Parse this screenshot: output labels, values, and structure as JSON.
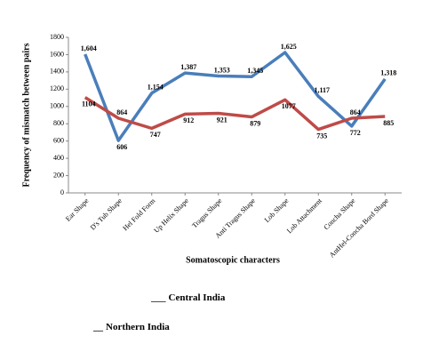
{
  "chart_data": {
    "type": "line",
    "x_label": "Somatoscopic characters",
    "y_label": "Frequency of mismatch between pairs",
    "categories": [
      "Ear Shape",
      "D's Tub Shape",
      "Hel Fold Form",
      "Up Helix Shape",
      "Tragus Shape",
      "Anti Tragus Shape",
      "Lob Shape",
      "Lob Attachment",
      "Concha Shape",
      "AntHel-Concha Bord Shape"
    ],
    "series": [
      {
        "name": "Central India",
        "color": "#4a7ebb",
        "legend_prefix": "___",
        "values": [
          1604,
          606,
          1154,
          1387,
          1353,
          1345,
          1625,
          1117,
          772,
          1318
        ],
        "value_labels": [
          "1,604",
          "606",
          "1,154",
          "1,387",
          "1,353",
          "1,345",
          "1,625",
          "1,117",
          "772",
          "1,318"
        ]
      },
      {
        "name": "Northern India",
        "color": "#be4b48",
        "legend_prefix": "__",
        "values": [
          1104,
          864,
          747,
          912,
          921,
          879,
          1077,
          735,
          864,
          885
        ]
      }
    ],
    "ylim": [
      0,
      1800
    ],
    "yticks": [
      0,
      200,
      400,
      600,
      800,
      1000,
      1200,
      1400,
      1600,
      1800
    ]
  }
}
